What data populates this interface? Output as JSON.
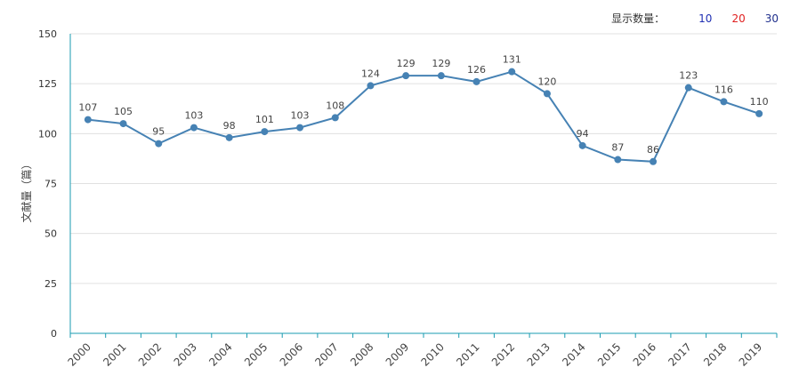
{
  "controls": {
    "label": "显示数量：",
    "options": [
      {
        "label": "10",
        "color": "#1f2fb3"
      },
      {
        "label": "20",
        "color": "#e02020"
      },
      {
        "label": "30",
        "color": "#1f2f8c"
      }
    ]
  },
  "chart_data": {
    "type": "line",
    "title": "",
    "xlabel": "",
    "ylabel": "文献量（篇）",
    "categories": [
      "2000",
      "2001",
      "2002",
      "2003",
      "2004",
      "2005",
      "2006",
      "2007",
      "2008",
      "2009",
      "2010",
      "2011",
      "2012",
      "2013",
      "2014",
      "2015",
      "2016",
      "2017",
      "2018",
      "2019"
    ],
    "values": [
      107,
      105,
      95,
      103,
      98,
      101,
      103,
      108,
      124,
      129,
      129,
      126,
      131,
      120,
      94,
      87,
      86,
      123,
      116,
      110
    ],
    "data_labels": [
      "107",
      "105",
      "95",
      "103",
      "98",
      "101",
      "103",
      "108",
      "124",
      "129",
      "129",
      "126",
      "131",
      "120",
      "94",
      "87",
      "86",
      "123",
      "116",
      "110"
    ],
    "ylim": [
      0,
      150
    ],
    "yticks": [
      0,
      25,
      50,
      75,
      100,
      125,
      150
    ],
    "ytick_labels": [
      "0",
      "25",
      "50",
      "75",
      "100",
      "125",
      "150"
    ],
    "grid": "horizontal",
    "legend": "none",
    "line_color": "#4682b4",
    "axis_color": "#1a9bb0",
    "grid_color": "#e0e0e0"
  }
}
